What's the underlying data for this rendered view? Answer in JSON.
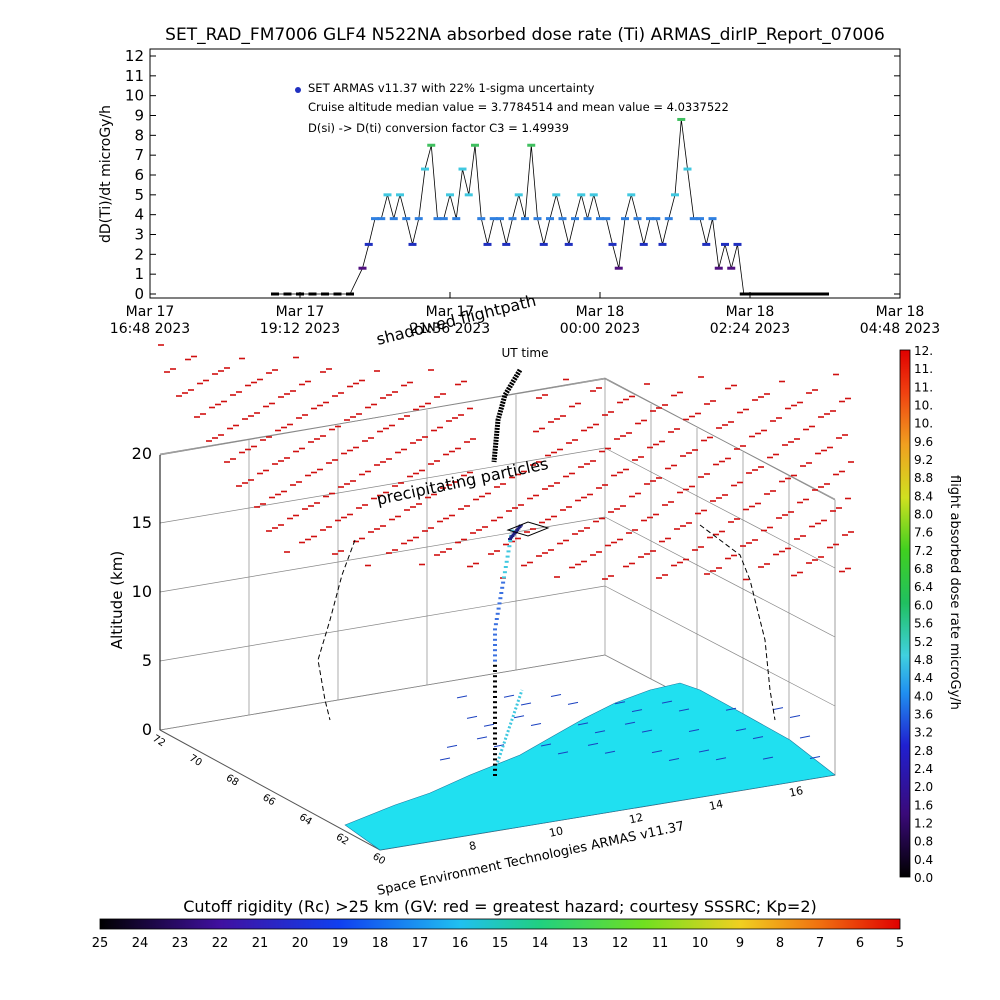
{
  "header": {
    "title": "SET_RAD_FM7006  GLF4 N522NA absorbed dose rate (Ti) ARMAS_dirIP_Report_07006"
  },
  "chart_data": [
    {
      "type": "scatter",
      "ylabel": "dD(Ti)/dt microGy/h",
      "xlabel": "UT time",
      "ylim": [
        0,
        12
      ],
      "yticks": [
        "0",
        "1",
        "2",
        "3",
        "4",
        "5",
        "6",
        "7",
        "8",
        "9",
        "10",
        "11",
        "12"
      ],
      "xticks": [
        {
          "l1": "Mar 17",
          "l2": "16:48 2023"
        },
        {
          "l1": "Mar 17",
          "l2": "19:12 2023"
        },
        {
          "l1": "Mar 17",
          "l2": "21:36 2023"
        },
        {
          "l1": "Mar 18",
          "l2": "00:00 2023"
        },
        {
          "l1": "Mar 18",
          "l2": "02:24 2023"
        },
        {
          "l1": "Mar 18",
          "l2": "04:48 2023"
        }
      ],
      "x_range_hours": [
        0,
        12
      ],
      "legend": {
        "line1": "SET ARMAS v11.37 with 22% 1-sigma uncertainty",
        "line2": "Cruise altitude median value = 3.7784514 and mean value = 4.0337522",
        "line3": "D(si) -> D(ti) conversion factor C3 = 1.49939"
      },
      "series": [
        {
          "x_hours": [
            2.0,
            2.2,
            2.4,
            2.6,
            2.8,
            3.0,
            3.2,
            3.4,
            3.5,
            3.6,
            3.7,
            3.8,
            3.9,
            4.0,
            4.1,
            4.2,
            4.3,
            4.4,
            4.5,
            4.6,
            4.7,
            4.8,
            4.9,
            5.0,
            5.1,
            5.2,
            5.3,
            5.4,
            5.5,
            5.6,
            5.7,
            5.8,
            5.9,
            6.0,
            6.1,
            6.2,
            6.3,
            6.4,
            6.5,
            6.6,
            6.7,
            6.8,
            6.9,
            7.0,
            7.1,
            7.2,
            7.3,
            7.4,
            7.5,
            7.6,
            7.7,
            7.8,
            7.9,
            8.0,
            8.1,
            8.2,
            8.3,
            8.4,
            8.5,
            8.6,
            8.7,
            8.8,
            8.9,
            9.0,
            9.1,
            9.2,
            9.3,
            9.4,
            9.5,
            9.6,
            9.7,
            9.8,
            9.9,
            10.0,
            10.1,
            10.2,
            10.3,
            10.4,
            10.5,
            10.6,
            10.7,
            10.8
          ],
          "values": [
            0,
            0,
            0,
            0,
            0,
            0,
            0,
            1.3,
            2.5,
            3.8,
            3.8,
            5.0,
            3.8,
            5.0,
            3.8,
            2.5,
            3.8,
            6.3,
            7.5,
            3.8,
            3.8,
            5.0,
            3.8,
            6.3,
            5.0,
            7.5,
            3.8,
            2.5,
            3.8,
            3.8,
            2.5,
            3.8,
            5.0,
            3.8,
            7.5,
            3.8,
            2.5,
            3.8,
            5.0,
            3.8,
            2.5,
            3.8,
            5.0,
            3.8,
            5.0,
            3.8,
            3.8,
            2.5,
            1.3,
            3.8,
            5.0,
            3.8,
            2.5,
            3.8,
            3.8,
            2.5,
            3.8,
            5.0,
            8.8,
            6.3,
            3.8,
            3.8,
            2.5,
            3.8,
            1.3,
            2.5,
            1.3,
            2.5,
            0,
            0,
            0,
            0,
            0,
            0,
            0,
            0,
            0,
            0,
            0,
            0,
            0,
            0
          ]
        }
      ]
    },
    {
      "type": "scatter",
      "ylabel": "Altitude (km)",
      "yticks": [
        "0",
        "5",
        "10",
        "15",
        "20"
      ],
      "lat_ticks": [
        "60",
        "62",
        "64",
        "66",
        "68",
        "70",
        "72"
      ],
      "lon_ticks": [
        "8",
        "10",
        "12",
        "14",
        "16"
      ],
      "labels": {
        "shadowed": "shadowed flightpath",
        "precipitating": "precipitating particles",
        "credit": "Space Environment Technologies ARMAS v11.37"
      },
      "colorbar": {
        "label": "flight absorbed dose rate microGy/h",
        "ticks": [
          "0.0",
          "0.4",
          "0.8",
          "1.2",
          "1.6",
          "2.0",
          "2.4",
          "2.8",
          "3.2",
          "3.6",
          "4.0",
          "4.4",
          "4.8",
          "5.2",
          "5.6",
          "6.0",
          "6.4",
          "6.8",
          "7.2",
          "7.6",
          "8.0",
          "8.4",
          "8.8",
          "9.2",
          "9.6",
          "10.",
          "10.",
          "11.",
          "11.",
          "12."
        ]
      }
    }
  ],
  "rigidity_bar": {
    "title": "Cutoff rigidity (Rc) >25 km (GV: red = greatest hazard; courtesy SSSRC; Kp=2)",
    "ticks": [
      "25",
      "24",
      "23",
      "22",
      "21",
      "20",
      "19",
      "18",
      "17",
      "16",
      "15",
      "14",
      "13",
      "12",
      "11",
      "10",
      "9",
      "8",
      "7",
      "6",
      "5"
    ]
  },
  "colors": {
    "cruise_points": "#40c8e0",
    "low_points": "#2030c0",
    "high_points": "#40c060",
    "hazard": "#d01010",
    "map_fill": "#20e0f0"
  }
}
